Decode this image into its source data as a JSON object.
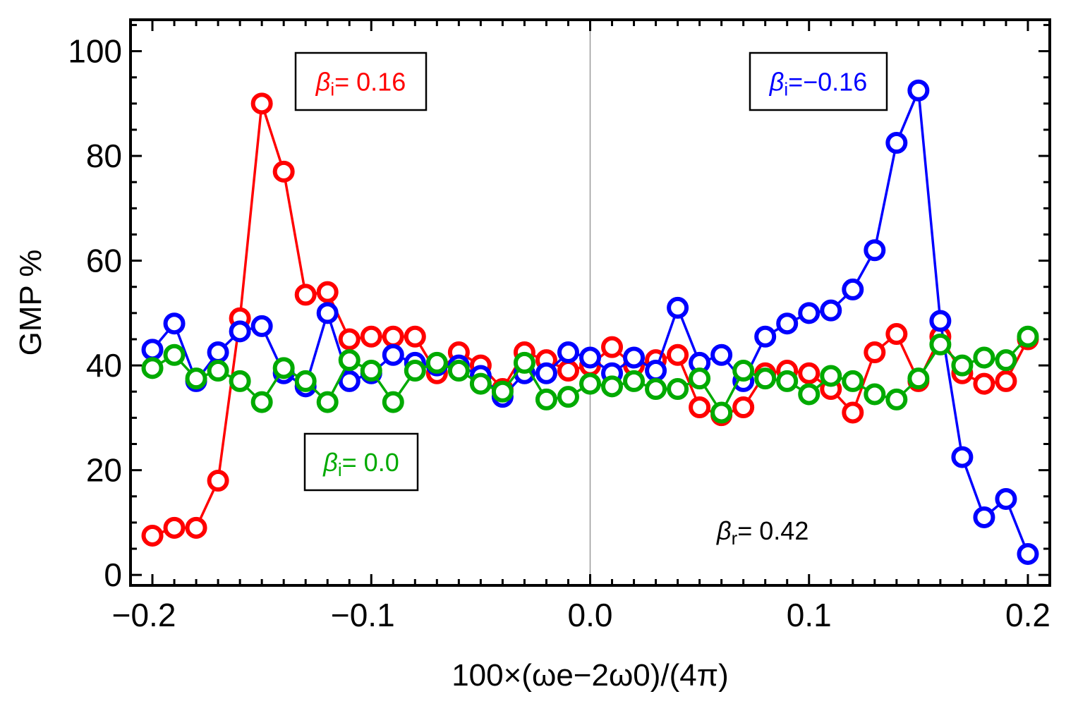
{
  "chart_data": {
    "type": "line",
    "xlabel": "100×(ωe−2ω0)/(4π)",
    "ylabel": "GMP %",
    "xlim": [
      -0.21,
      0.21
    ],
    "ylim": [
      -2,
      106
    ],
    "xticks": [
      "−0.2",
      "−0.1",
      "0.0",
      "0.1",
      "0.2"
    ],
    "yticks": [
      "0",
      "20",
      "40",
      "60",
      "80",
      "100"
    ],
    "grid": false,
    "x": [
      -0.2,
      -0.19,
      -0.18,
      -0.17,
      -0.16,
      -0.15,
      -0.14,
      -0.13,
      -0.12,
      -0.11,
      -0.1,
      -0.09,
      -0.08,
      -0.07,
      -0.06,
      -0.05,
      -0.04,
      -0.03,
      -0.02,
      -0.01,
      0.0,
      0.01,
      0.02,
      0.03,
      0.04,
      0.05,
      0.06,
      0.07,
      0.08,
      0.09,
      0.1,
      0.11,
      0.12,
      0.13,
      0.14,
      0.15,
      0.16,
      0.17,
      0.18,
      0.19,
      0.2
    ],
    "series": [
      {
        "color": "#ff0000",
        "values": [
          7.5,
          9,
          9,
          18,
          49,
          90,
          77,
          53.5,
          54,
          45,
          45.5,
          45.5,
          45.5,
          38.5,
          42.5,
          40,
          35.5,
          42.5,
          41,
          39,
          40,
          43.5,
          40,
          41,
          42,
          32,
          30.5,
          32,
          38.5,
          39,
          38.5,
          35.5,
          31,
          42.5,
          46,
          37,
          45.5,
          38.5,
          36.5,
          37,
          45
        ]
      },
      {
        "color": "#0000ff",
        "values": [
          43,
          48,
          37,
          42.5,
          46.5,
          47.5,
          38.5,
          36,
          50,
          37,
          38.5,
          42,
          40.5,
          40,
          40,
          38,
          34,
          38.5,
          38.5,
          42.5,
          41.5,
          38.5,
          41.5,
          39,
          51,
          40.5,
          42,
          37,
          45.5,
          48,
          50,
          50.5,
          54.5,
          62,
          82.5,
          92.5,
          48.5,
          22.5,
          11,
          14.5,
          4
        ]
      },
      {
        "color": "#00aa00",
        "values": [
          39.5,
          42,
          37.5,
          39,
          37,
          33,
          39.5,
          37,
          33,
          41,
          39,
          33,
          39,
          40.5,
          39,
          36.5,
          35,
          40.5,
          33.5,
          34,
          36.5,
          36,
          37,
          35.5,
          35.5,
          37.5,
          31,
          39,
          37.5,
          37,
          34.5,
          38,
          37,
          34.5,
          33.5,
          37.5,
          44,
          40,
          41.5,
          41,
          45.5
        ]
      }
    ],
    "annotations": [
      {
        "symbol": "β",
        "sub": "i",
        "rest": "= 0.16",
        "color": "#ff0000",
        "boxed": true
      },
      {
        "symbol": "β",
        "sub": "i",
        "rest": "=−0.16",
        "color": "#0000ff",
        "boxed": true
      },
      {
        "symbol": "β",
        "sub": "i",
        "rest": "= 0.0",
        "color": "#00aa00",
        "boxed": true
      },
      {
        "symbol": "β",
        "sub": "r",
        "rest": "= 0.42",
        "color": "#000000",
        "boxed": false
      }
    ]
  }
}
